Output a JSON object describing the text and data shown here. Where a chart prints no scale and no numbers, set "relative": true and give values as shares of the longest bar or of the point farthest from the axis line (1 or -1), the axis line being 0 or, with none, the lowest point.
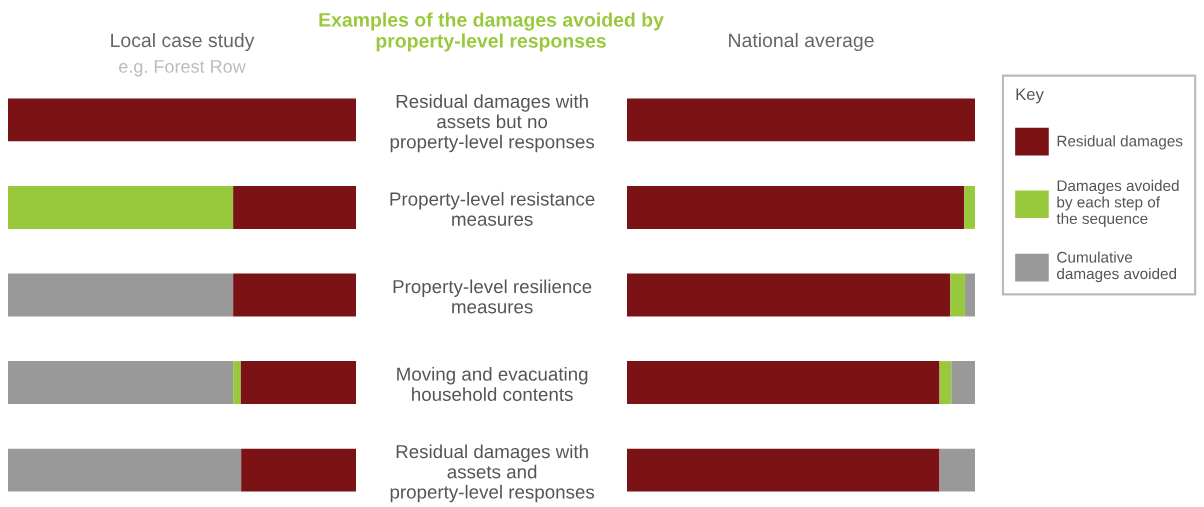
{
  "chart_data": [
    {
      "type": "bar",
      "orientation": "horizontal",
      "stacked": true,
      "relative": true,
      "title": "Local case study",
      "subtitle": "e.g. Forest Row",
      "annotations": [
        "Examples of the damages avoided by\nproperty-level responses"
      ],
      "categories": [
        "Residual damages with\nassets but no\nproperty-level responses",
        "Property-level resistance\nmeasures",
        "Property-level resilience\nmeasures",
        "Moving and evacuating\nhousehold contents",
        "Residual damages with\nassets and\nproperty-level responses"
      ],
      "series": [
        {
          "color": "#999999",
          "values": [
            0,
            0,
            0.647,
            0.647,
            0.67
          ]
        },
        {
          "color": "#98c93c",
          "values": [
            0,
            0.647,
            0,
            0.022,
            0
          ]
        },
        {
          "color": "#7b1216",
          "values": [
            1,
            0.353,
            0.353,
            0.331,
            0.33
          ]
        }
      ]
    },
    {
      "type": "bar",
      "orientation": "horizontal",
      "stacked": true,
      "relative": true,
      "title": "National average",
      "legend": "right",
      "legend_title": "Key",
      "series": [
        {
          "name": "Residual damages",
          "color": "#7b1216",
          "values": [
            1,
            0.969,
            0.929,
            0.898,
            0.898
          ]
        },
        {
          "name": "Damages avoided\nby each step of\nthe sequence",
          "color": "#98c93c",
          "values": [
            0,
            0.031,
            0.042,
            0.034,
            0
          ]
        },
        {
          "name": "Cumulative\ndamages avoided",
          "color": "#999999",
          "values": [
            0,
            0,
            0.029,
            0.068,
            0.102
          ]
        }
      ]
    }
  ]
}
